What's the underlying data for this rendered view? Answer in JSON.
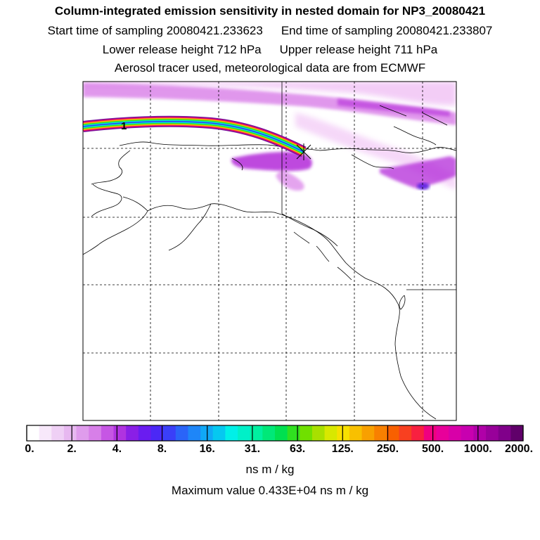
{
  "header": {
    "title": "Column-integrated emission sensitivity in nested domain for NP3_20080421",
    "start_label": "Start time of sampling 20080421.233623",
    "end_label": "End time of sampling 20080421.233807",
    "lower_label": "Lower release height  712 hPa",
    "upper_label": "Upper release height  711 hPa",
    "tracer_info": "Aerosol tracer used, meteorological data are from ECMWF"
  },
  "map": {
    "trajectory_label": "1",
    "plume_color_light": "#f2c8f6",
    "plume_color_mid": "#d97ee8",
    "plume_color_strong": "#b32cd9",
    "plume_color_peak": "#5a1fe0"
  },
  "colorbar": {
    "tick_labels": [
      "0.",
      "2.",
      "4.",
      "8.",
      "16.",
      "31.",
      "63.",
      "125.",
      "250.",
      "500.",
      "1000.",
      "2000."
    ],
    "colors": [
      "#ffffff",
      "#f7e8fa",
      "#efd0f5",
      "#e7b8f0",
      "#df9cec",
      "#d77fe8",
      "#c656e4",
      "#b033e0",
      "#8a1fe6",
      "#6a1cf0",
      "#4b28f6",
      "#3a3ff8",
      "#2a64f8",
      "#1e86f8",
      "#10a8f6",
      "#06c8f0",
      "#00f0e8",
      "#00f0c8",
      "#00f0a0",
      "#00e878",
      "#00e050",
      "#30e020",
      "#70e000",
      "#a8e000",
      "#d8e800",
      "#f8e000",
      "#f8c000",
      "#f8a000",
      "#f88000",
      "#f86000",
      "#f84020",
      "#f82040",
      "#f00080",
      "#e8009a",
      "#d800a8",
      "#c800b0",
      "#b000a8",
      "#98009a",
      "#80008a",
      "#60006a"
    ],
    "units": "ns m / kg",
    "max_value_text": "Maximum value  0.433E+04 ns m / kg"
  }
}
